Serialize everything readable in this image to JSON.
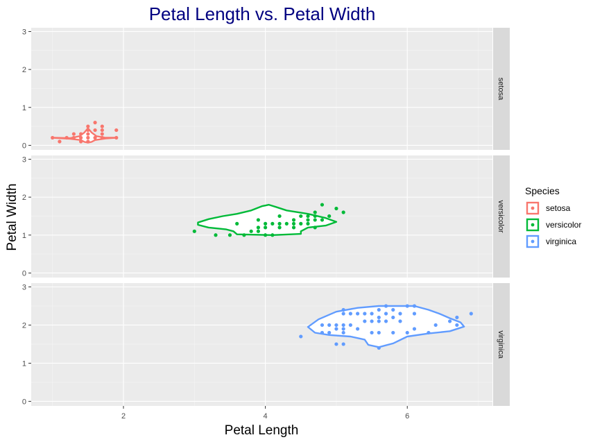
{
  "chart_data": {
    "type": "scatter",
    "title": "Petal Length vs. Petal Width",
    "xlabel": "Petal Length",
    "ylabel": "Petal Width",
    "xlim": [
      0.7,
      7.2
    ],
    "ylim": [
      -0.12,
      3.1
    ],
    "x_ticks": [
      2,
      4,
      6
    ],
    "y_ticks": [
      0,
      1,
      2,
      3
    ],
    "grid": true,
    "facet_by": "Species",
    "legend": {
      "title": "Species",
      "position": "right"
    },
    "colors": {
      "title": "#000080",
      "setosa": "#F8766D",
      "versicolor": "#00BA38",
      "virginica": "#619CFF",
      "panel_bg": "#EBEBEB",
      "strip_bg": "#D9D9D9"
    },
    "series": [
      {
        "name": "setosa",
        "points": [
          [
            1.0,
            0.2
          ],
          [
            1.1,
            0.1
          ],
          [
            1.2,
            0.2
          ],
          [
            1.3,
            0.2
          ],
          [
            1.3,
            0.3
          ],
          [
            1.4,
            0.1
          ],
          [
            1.4,
            0.2
          ],
          [
            1.4,
            0.3
          ],
          [
            1.5,
            0.1
          ],
          [
            1.5,
            0.2
          ],
          [
            1.5,
            0.3
          ],
          [
            1.5,
            0.4
          ],
          [
            1.5,
            0.5
          ],
          [
            1.6,
            0.2
          ],
          [
            1.6,
            0.4
          ],
          [
            1.6,
            0.6
          ],
          [
            1.7,
            0.2
          ],
          [
            1.7,
            0.3
          ],
          [
            1.7,
            0.4
          ],
          [
            1.7,
            0.5
          ],
          [
            1.9,
            0.2
          ],
          [
            1.9,
            0.4
          ]
        ],
        "contour": [
          [
            1.0,
            0.2
          ],
          [
            1.25,
            0.19
          ],
          [
            1.38,
            0.24
          ],
          [
            1.45,
            0.34
          ],
          [
            1.5,
            0.45
          ],
          [
            1.55,
            0.34
          ],
          [
            1.62,
            0.24
          ],
          [
            1.75,
            0.2
          ],
          [
            1.9,
            0.2
          ],
          [
            1.75,
            0.18
          ],
          [
            1.6,
            0.14
          ],
          [
            1.55,
            0.09
          ],
          [
            1.5,
            0.07
          ],
          [
            1.45,
            0.09
          ],
          [
            1.4,
            0.14
          ],
          [
            1.25,
            0.17
          ],
          [
            1.0,
            0.2
          ]
        ]
      },
      {
        "name": "versicolor",
        "points": [
          [
            3.0,
            1.1
          ],
          [
            3.3,
            1.0
          ],
          [
            3.5,
            1.0
          ],
          [
            3.6,
            1.3
          ],
          [
            3.7,
            1.0
          ],
          [
            3.8,
            1.1
          ],
          [
            3.9,
            1.1
          ],
          [
            3.9,
            1.2
          ],
          [
            3.9,
            1.4
          ],
          [
            4.0,
            1.0
          ],
          [
            4.0,
            1.2
          ],
          [
            4.0,
            1.3
          ],
          [
            4.1,
            1.0
          ],
          [
            4.1,
            1.3
          ],
          [
            4.2,
            1.2
          ],
          [
            4.2,
            1.3
          ],
          [
            4.2,
            1.5
          ],
          [
            4.3,
            1.3
          ],
          [
            4.4,
            1.2
          ],
          [
            4.4,
            1.3
          ],
          [
            4.4,
            1.4
          ],
          [
            4.5,
            1.3
          ],
          [
            4.5,
            1.5
          ],
          [
            4.6,
            1.3
          ],
          [
            4.6,
            1.4
          ],
          [
            4.6,
            1.5
          ],
          [
            4.7,
            1.2
          ],
          [
            4.7,
            1.4
          ],
          [
            4.7,
            1.5
          ],
          [
            4.7,
            1.6
          ],
          [
            4.8,
            1.4
          ],
          [
            4.8,
            1.8
          ],
          [
            4.9,
            1.5
          ],
          [
            5.0,
            1.7
          ],
          [
            5.1,
            1.6
          ]
        ],
        "contour": [
          [
            3.05,
            1.33
          ],
          [
            3.2,
            1.42
          ],
          [
            3.4,
            1.5
          ],
          [
            3.6,
            1.56
          ],
          [
            3.8,
            1.65
          ],
          [
            3.95,
            1.76
          ],
          [
            4.05,
            1.8
          ],
          [
            4.15,
            1.74
          ],
          [
            4.3,
            1.65
          ],
          [
            4.6,
            1.56
          ],
          [
            4.85,
            1.45
          ],
          [
            5.0,
            1.35
          ],
          [
            4.85,
            1.25
          ],
          [
            4.6,
            1.2
          ],
          [
            4.5,
            1.1
          ],
          [
            4.5,
            1.03
          ],
          [
            4.1,
            1.0
          ],
          [
            3.6,
            1.02
          ],
          [
            3.55,
            1.1
          ],
          [
            3.45,
            1.15
          ],
          [
            3.2,
            1.2
          ],
          [
            3.05,
            1.27
          ],
          [
            3.05,
            1.33
          ]
        ]
      },
      {
        "name": "virginica",
        "points": [
          [
            4.5,
            1.7
          ],
          [
            4.8,
            1.8
          ],
          [
            4.8,
            2.0
          ],
          [
            4.9,
            1.8
          ],
          [
            4.9,
            2.0
          ],
          [
            5.0,
            1.5
          ],
          [
            5.0,
            1.9
          ],
          [
            5.0,
            2.0
          ],
          [
            5.1,
            1.5
          ],
          [
            5.1,
            1.8
          ],
          [
            5.1,
            1.9
          ],
          [
            5.1,
            2.0
          ],
          [
            5.1,
            2.3
          ],
          [
            5.1,
            2.4
          ],
          [
            5.2,
            2.0
          ],
          [
            5.2,
            2.3
          ],
          [
            5.3,
            1.9
          ],
          [
            5.3,
            2.3
          ],
          [
            5.4,
            2.1
          ],
          [
            5.4,
            2.3
          ],
          [
            5.5,
            1.8
          ],
          [
            5.5,
            2.1
          ],
          [
            5.5,
            2.3
          ],
          [
            5.6,
            1.4
          ],
          [
            5.6,
            1.8
          ],
          [
            5.6,
            2.1
          ],
          [
            5.6,
            2.2
          ],
          [
            5.6,
            2.4
          ],
          [
            5.7,
            2.1
          ],
          [
            5.7,
            2.3
          ],
          [
            5.7,
            2.5
          ],
          [
            5.8,
            1.8
          ],
          [
            5.8,
            2.2
          ],
          [
            5.8,
            2.4
          ],
          [
            5.9,
            2.1
          ],
          [
            5.9,
            2.3
          ],
          [
            6.0,
            1.8
          ],
          [
            6.0,
            2.5
          ],
          [
            6.1,
            1.9
          ],
          [
            6.1,
            2.3
          ],
          [
            6.1,
            2.5
          ],
          [
            6.3,
            1.8
          ],
          [
            6.4,
            2.0
          ],
          [
            6.6,
            2.1
          ],
          [
            6.7,
            2.0
          ],
          [
            6.7,
            2.2
          ],
          [
            6.9,
            2.3
          ]
        ],
        "contour": [
          [
            4.6,
            1.95
          ],
          [
            4.75,
            2.15
          ],
          [
            5.0,
            2.35
          ],
          [
            5.3,
            2.45
          ],
          [
            5.6,
            2.5
          ],
          [
            6.1,
            2.5
          ],
          [
            6.3,
            2.4
          ],
          [
            6.45,
            2.3
          ],
          [
            6.6,
            2.18
          ],
          [
            6.75,
            2.07
          ],
          [
            6.8,
            1.96
          ],
          [
            6.6,
            1.84
          ],
          [
            6.3,
            1.78
          ],
          [
            6.0,
            1.7
          ],
          [
            5.8,
            1.52
          ],
          [
            5.6,
            1.42
          ],
          [
            5.45,
            1.48
          ],
          [
            5.4,
            1.62
          ],
          [
            5.2,
            1.7
          ],
          [
            4.9,
            1.74
          ],
          [
            4.7,
            1.8
          ],
          [
            4.6,
            1.95
          ]
        ]
      }
    ]
  }
}
